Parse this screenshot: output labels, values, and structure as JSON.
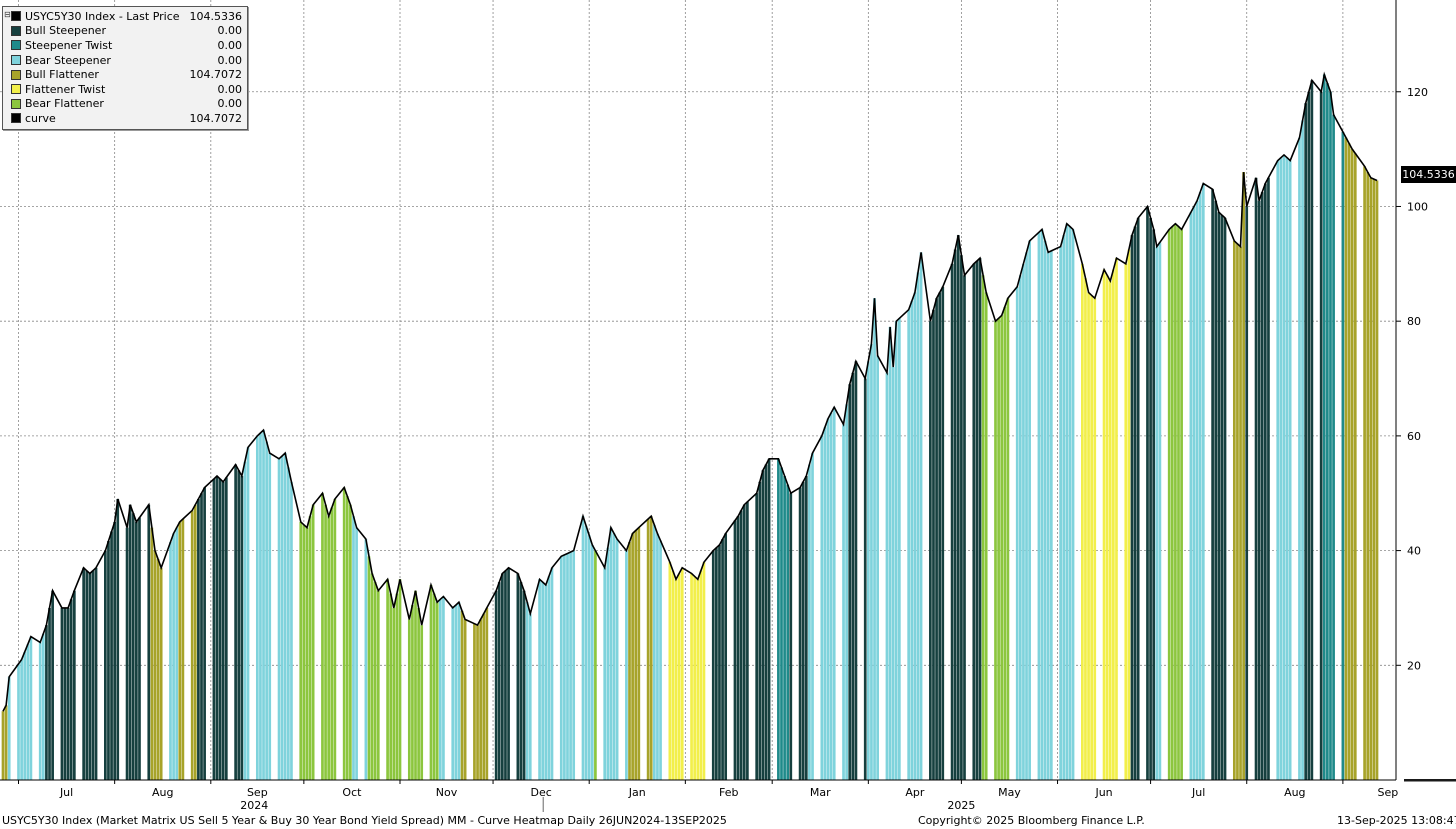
{
  "chart_data": {
    "type": "bar",
    "title": "USYC5Y30 Index - Last Price",
    "ylim": [
      0,
      136
    ],
    "yticks": [
      20,
      40,
      60,
      80,
      100,
      120
    ],
    "grid": true,
    "legend_position": "top-left",
    "x_months": [
      {
        "label": "Jul",
        "date": "2024-07-01"
      },
      {
        "label": "Aug",
        "date": "2024-08-01"
      },
      {
        "label": "Sep",
        "date": "2024-09-01"
      },
      {
        "label": "Oct",
        "date": "2024-10-01"
      },
      {
        "label": "Nov",
        "date": "2024-11-01"
      },
      {
        "label": "Dec",
        "date": "2024-12-01"
      },
      {
        "label": "Jan",
        "date": "2025-01-01"
      },
      {
        "label": "Feb",
        "date": "2025-02-01"
      },
      {
        "label": "Mar",
        "date": "2025-03-01"
      },
      {
        "label": "Apr",
        "date": "2025-04-01"
      },
      {
        "label": "May",
        "date": "2025-05-01"
      },
      {
        "label": "Jun",
        "date": "2025-06-01"
      },
      {
        "label": "Jul",
        "date": "2025-07-01"
      },
      {
        "label": "Aug",
        "date": "2025-08-01"
      },
      {
        "label": "Sep",
        "date": "2025-09-01"
      }
    ],
    "x_years": [
      {
        "label": "2024",
        "date": "2024-09-15"
      },
      {
        "label": "2025",
        "date": "2025-05-01"
      }
    ],
    "categories": [
      "Bull Steepener",
      "Steepener Twist",
      "Bear Steepener",
      "Bull Flattener",
      "Flattener Twist",
      "Bear Flattener"
    ],
    "colors": {
      "Bull Steepener": "#16403f",
      "Steepener Twist": "#1f8a8a",
      "Bear Steepener": "#7fd3dc",
      "Bull Flattener": "#a7a32a",
      "Flattener Twist": "#f2ef4a",
      "Bear Flattener": "#8cc63e",
      "curve": "#000000"
    },
    "curve_keypoints": [
      [
        "2024-06-26",
        12
      ],
      [
        "2024-06-27",
        13
      ],
      [
        "2024-06-28",
        18
      ],
      [
        "2024-07-02",
        21
      ],
      [
        "2024-07-05",
        25
      ],
      [
        "2024-07-08",
        24
      ],
      [
        "2024-07-10",
        27
      ],
      [
        "2024-07-12",
        33
      ],
      [
        "2024-07-15",
        30
      ],
      [
        "2024-07-17",
        30
      ],
      [
        "2024-07-19",
        33
      ],
      [
        "2024-07-22",
        37
      ],
      [
        "2024-07-24",
        36
      ],
      [
        "2024-07-26",
        37
      ],
      [
        "2024-07-29",
        40
      ],
      [
        "2024-08-01",
        45
      ],
      [
        "2024-08-02",
        49
      ],
      [
        "2024-08-05",
        44
      ],
      [
        "2024-08-06",
        48
      ],
      [
        "2024-08-08",
        45
      ],
      [
        "2024-08-12",
        48
      ],
      [
        "2024-08-14",
        40
      ],
      [
        "2024-08-16",
        37
      ],
      [
        "2024-08-20",
        43
      ],
      [
        "2024-08-22",
        45
      ],
      [
        "2024-08-26",
        47
      ],
      [
        "2024-08-28",
        49
      ],
      [
        "2024-08-30",
        51
      ],
      [
        "2024-09-03",
        53
      ],
      [
        "2024-09-05",
        52
      ],
      [
        "2024-09-09",
        55
      ],
      [
        "2024-09-11",
        53
      ],
      [
        "2024-09-13",
        58
      ],
      [
        "2024-09-16",
        60
      ],
      [
        "2024-09-18",
        61
      ],
      [
        "2024-09-20",
        57
      ],
      [
        "2024-09-23",
        56
      ],
      [
        "2024-09-25",
        57
      ],
      [
        "2024-09-27",
        52
      ],
      [
        "2024-09-30",
        45
      ],
      [
        "2024-10-02",
        44
      ],
      [
        "2024-10-04",
        48
      ],
      [
        "2024-10-07",
        50
      ],
      [
        "2024-10-09",
        46
      ],
      [
        "2024-10-11",
        49
      ],
      [
        "2024-10-14",
        51
      ],
      [
        "2024-10-16",
        48
      ],
      [
        "2024-10-18",
        44
      ],
      [
        "2024-10-21",
        42
      ],
      [
        "2024-10-23",
        36
      ],
      [
        "2024-10-25",
        33
      ],
      [
        "2024-10-28",
        35
      ],
      [
        "2024-10-30",
        30
      ],
      [
        "2024-11-01",
        35
      ],
      [
        "2024-11-04",
        28
      ],
      [
        "2024-11-06",
        33
      ],
      [
        "2024-11-08",
        27
      ],
      [
        "2024-11-11",
        34
      ],
      [
        "2024-11-13",
        31
      ],
      [
        "2024-11-15",
        32
      ],
      [
        "2024-11-18",
        30
      ],
      [
        "2024-11-20",
        31
      ],
      [
        "2024-11-22",
        28
      ],
      [
        "2024-11-26",
        27
      ],
      [
        "2024-11-29",
        30
      ],
      [
        "2024-12-02",
        33
      ],
      [
        "2024-12-04",
        36
      ],
      [
        "2024-12-06",
        37
      ],
      [
        "2024-12-09",
        36
      ],
      [
        "2024-12-11",
        33
      ],
      [
        "2024-12-13",
        29
      ],
      [
        "2024-12-16",
        35
      ],
      [
        "2024-12-18",
        34
      ],
      [
        "2024-12-20",
        37
      ],
      [
        "2024-12-23",
        39
      ],
      [
        "2024-12-27",
        40
      ],
      [
        "2024-12-30",
        46
      ],
      [
        "2025-01-02",
        41
      ],
      [
        "2025-01-06",
        37
      ],
      [
        "2025-01-08",
        44
      ],
      [
        "2025-01-10",
        42
      ],
      [
        "2025-01-13",
        40
      ],
      [
        "2025-01-15",
        43
      ],
      [
        "2025-01-17",
        44
      ],
      [
        "2025-01-21",
        46
      ],
      [
        "2025-01-23",
        43
      ],
      [
        "2025-01-27",
        38
      ],
      [
        "2025-01-29",
        35
      ],
      [
        "2025-01-31",
        37
      ],
      [
        "2025-02-03",
        36
      ],
      [
        "2025-02-05",
        35
      ],
      [
        "2025-02-07",
        38
      ],
      [
        "2025-02-10",
        40
      ],
      [
        "2025-02-12",
        41
      ],
      [
        "2025-02-14",
        43
      ],
      [
        "2025-02-18",
        46
      ],
      [
        "2025-02-20",
        48
      ],
      [
        "2025-02-24",
        50
      ],
      [
        "2025-02-26",
        54
      ],
      [
        "2025-02-28",
        56
      ],
      [
        "2025-03-03",
        56
      ],
      [
        "2025-03-05",
        53
      ],
      [
        "2025-03-07",
        50
      ],
      [
        "2025-03-10",
        51
      ],
      [
        "2025-03-12",
        53
      ],
      [
        "2025-03-14",
        57
      ],
      [
        "2025-03-17",
        60
      ],
      [
        "2025-03-19",
        63
      ],
      [
        "2025-03-21",
        65
      ],
      [
        "2025-03-24",
        62
      ],
      [
        "2025-03-26",
        69
      ],
      [
        "2025-03-28",
        73
      ],
      [
        "2025-03-31",
        70
      ],
      [
        "2025-04-02",
        76
      ],
      [
        "2025-04-03",
        84
      ],
      [
        "2025-04-04",
        74
      ],
      [
        "2025-04-07",
        71
      ],
      [
        "2025-04-08",
        79
      ],
      [
        "2025-04-09",
        72
      ],
      [
        "2025-04-10",
        80
      ],
      [
        "2025-04-14",
        82
      ],
      [
        "2025-04-16",
        85
      ],
      [
        "2025-04-18",
        92
      ],
      [
        "2025-04-21",
        80
      ],
      [
        "2025-04-23",
        84
      ],
      [
        "2025-04-25",
        86
      ],
      [
        "2025-04-28",
        90
      ],
      [
        "2025-04-30",
        95
      ],
      [
        "2025-05-02",
        88
      ],
      [
        "2025-05-05",
        90
      ],
      [
        "2025-05-07",
        91
      ],
      [
        "2025-05-09",
        85
      ],
      [
        "2025-05-12",
        80
      ],
      [
        "2025-05-14",
        81
      ],
      [
        "2025-05-16",
        84
      ],
      [
        "2025-05-19",
        86
      ],
      [
        "2025-05-21",
        90
      ],
      [
        "2025-05-23",
        94
      ],
      [
        "2025-05-27",
        96
      ],
      [
        "2025-05-29",
        92
      ],
      [
        "2025-06-02",
        93
      ],
      [
        "2025-06-04",
        97
      ],
      [
        "2025-06-06",
        96
      ],
      [
        "2025-06-09",
        90
      ],
      [
        "2025-06-11",
        85
      ],
      [
        "2025-06-13",
        84
      ],
      [
        "2025-06-16",
        89
      ],
      [
        "2025-06-18",
        87
      ],
      [
        "2025-06-20",
        91
      ],
      [
        "2025-06-23",
        90
      ],
      [
        "2025-06-25",
        95
      ],
      [
        "2025-06-27",
        98
      ],
      [
        "2025-06-30",
        100
      ],
      [
        "2025-07-02",
        96
      ],
      [
        "2025-07-03",
        93
      ],
      [
        "2025-07-07",
        96
      ],
      [
        "2025-07-09",
        97
      ],
      [
        "2025-07-11",
        96
      ],
      [
        "2025-07-14",
        99
      ],
      [
        "2025-07-16",
        101
      ],
      [
        "2025-07-18",
        104
      ],
      [
        "2025-07-21",
        103
      ],
      [
        "2025-07-23",
        99
      ],
      [
        "2025-07-25",
        98
      ],
      [
        "2025-07-28",
        94
      ],
      [
        "2025-07-30",
        93
      ],
      [
        "2025-07-31",
        106
      ],
      [
        "2025-08-01",
        100
      ],
      [
        "2025-08-04",
        105
      ],
      [
        "2025-08-05",
        101
      ],
      [
        "2025-08-07",
        104
      ],
      [
        "2025-08-08",
        105
      ],
      [
        "2025-08-11",
        108
      ],
      [
        "2025-08-13",
        109
      ],
      [
        "2025-08-15",
        108
      ],
      [
        "2025-08-18",
        112
      ],
      [
        "2025-08-20",
        118
      ],
      [
        "2025-08-22",
        122
      ],
      [
        "2025-08-25",
        120
      ],
      [
        "2025-08-26",
        123
      ],
      [
        "2025-08-28",
        120
      ],
      [
        "2025-08-29",
        116
      ],
      [
        "2025-09-02",
        112
      ],
      [
        "2025-09-04",
        110
      ],
      [
        "2025-09-08",
        107
      ],
      [
        "2025-09-10",
        105
      ],
      [
        "2025-09-12",
        104.5336
      ]
    ],
    "regimes": [
      [
        "2024-06-26",
        "Bull Flattener"
      ],
      [
        "2024-06-28",
        "Bear Steepener"
      ],
      [
        "2024-07-10",
        "Bull Steepener"
      ],
      [
        "2024-08-13",
        "Bull Flattener"
      ],
      [
        "2024-08-19",
        "Bear Steepener"
      ],
      [
        "2024-08-22",
        "Bull Flattener"
      ],
      [
        "2024-08-28",
        "Bull Steepener"
      ],
      [
        "2024-09-12",
        "Bear Steepener"
      ],
      [
        "2024-09-30",
        "Bear Flattener"
      ],
      [
        "2024-10-17",
        "Bear Steepener"
      ],
      [
        "2024-10-22",
        "Bear Flattener"
      ],
      [
        "2024-11-14",
        "Bear Steepener"
      ],
      [
        "2024-11-21",
        "Bull Flattener"
      ],
      [
        "2024-12-02",
        "Bull Steepener"
      ],
      [
        "2024-12-12",
        "Bear Steepener"
      ],
      [
        "2025-01-03",
        "Bear Flattener"
      ],
      [
        "2025-01-06",
        "Bear Steepener"
      ],
      [
        "2025-01-14",
        "Bull Flattener"
      ],
      [
        "2025-01-22",
        "Bear Steepener"
      ],
      [
        "2025-01-27",
        "Flattener Twist"
      ],
      [
        "2025-02-10",
        "Bull Steepener"
      ],
      [
        "2025-03-03",
        "Steepener Twist"
      ],
      [
        "2025-03-07",
        "Bull Steepener"
      ],
      [
        "2025-03-13",
        "Bear Steepener"
      ],
      [
        "2025-03-26",
        "Bull Steepener"
      ],
      [
        "2025-04-01",
        "Bear Steepener"
      ],
      [
        "2025-04-21",
        "Bull Steepener"
      ],
      [
        "2025-05-08",
        "Bear Flattener"
      ],
      [
        "2025-05-19",
        "Bear Steepener"
      ],
      [
        "2025-06-09",
        "Flattener Twist"
      ],
      [
        "2025-06-25",
        "Bull Steepener"
      ],
      [
        "2025-07-03",
        "Bear Steepener"
      ],
      [
        "2025-07-07",
        "Bear Flattener"
      ],
      [
        "2025-07-14",
        "Bear Steepener"
      ],
      [
        "2025-07-21",
        "Bull Steepener"
      ],
      [
        "2025-07-28",
        "Bull Flattener"
      ],
      [
        "2025-08-01",
        "Bull Steepener"
      ],
      [
        "2025-08-11",
        "Bear Steepener"
      ],
      [
        "2025-08-20",
        "Bull Steepener"
      ],
      [
        "2025-08-26",
        "Steepener Twist"
      ],
      [
        "2025-09-02",
        "Bull Flattener"
      ]
    ]
  },
  "legend": {
    "rows": [
      {
        "name": "USYC5Y30 Index - Last Price",
        "value": "104.5336",
        "color": "#000000"
      },
      {
        "name": "Bull Steepener",
        "value": "0.00",
        "color": "#16403f"
      },
      {
        "name": "Steepener Twist",
        "value": "0.00",
        "color": "#1f8a8a"
      },
      {
        "name": "Bear Steepener",
        "value": "0.00",
        "color": "#7fd3dc"
      },
      {
        "name": "Bull Flattener",
        "value": "104.7072",
        "color": "#a7a32a"
      },
      {
        "name": "Flattener Twist",
        "value": "0.00",
        "color": "#f2ef4a"
      },
      {
        "name": "Bear Flattener",
        "value": "0.00",
        "color": "#8cc63e"
      },
      {
        "name": "curve",
        "value": "104.7072",
        "color": "#000000"
      }
    ]
  },
  "last_price_tag": "104.5336",
  "footer": {
    "left": "USYC5Y30 Index (Market Matrix US Sell 5 Year & Buy 30 Year Bond Yield Spread) MM - Curve Heatmap  Daily 26JUN2024-13SEP2025",
    "center": "Copyright© 2025 Bloomberg Finance L.P.",
    "right": "13-Sep-2025 13:08:47"
  }
}
